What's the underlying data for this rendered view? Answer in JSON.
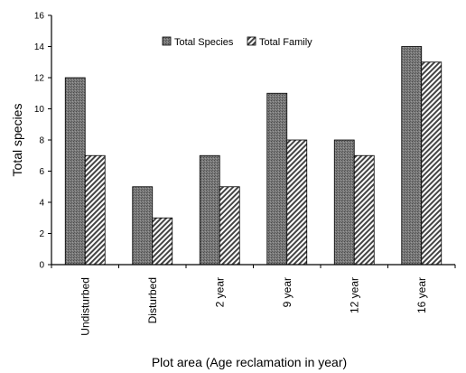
{
  "chart_data": {
    "type": "bar",
    "categories": [
      "Undisturbed",
      "Disturbed",
      "2 year",
      "9 year",
      "12 year",
      "16 year"
    ],
    "series": [
      {
        "name": "Total Species",
        "values": [
          12,
          5,
          7,
          11,
          8,
          14
        ],
        "color": "#6d6d6d",
        "pattern": "dotted-solid"
      },
      {
        "name": "Total Family",
        "values": [
          7,
          3,
          5,
          8,
          7,
          13
        ],
        "color": "#555555",
        "pattern": "diagonal-hatch"
      }
    ],
    "xlabel": "Plot area (Age reclamation in year)",
    "ylabel": "Total species",
    "ylim": [
      0,
      16
    ],
    "yticks": [
      "0",
      "2",
      "4",
      "6",
      "8",
      "10",
      "12",
      "14",
      "16"
    ],
    "grid": false,
    "legend_position": "top-center"
  }
}
